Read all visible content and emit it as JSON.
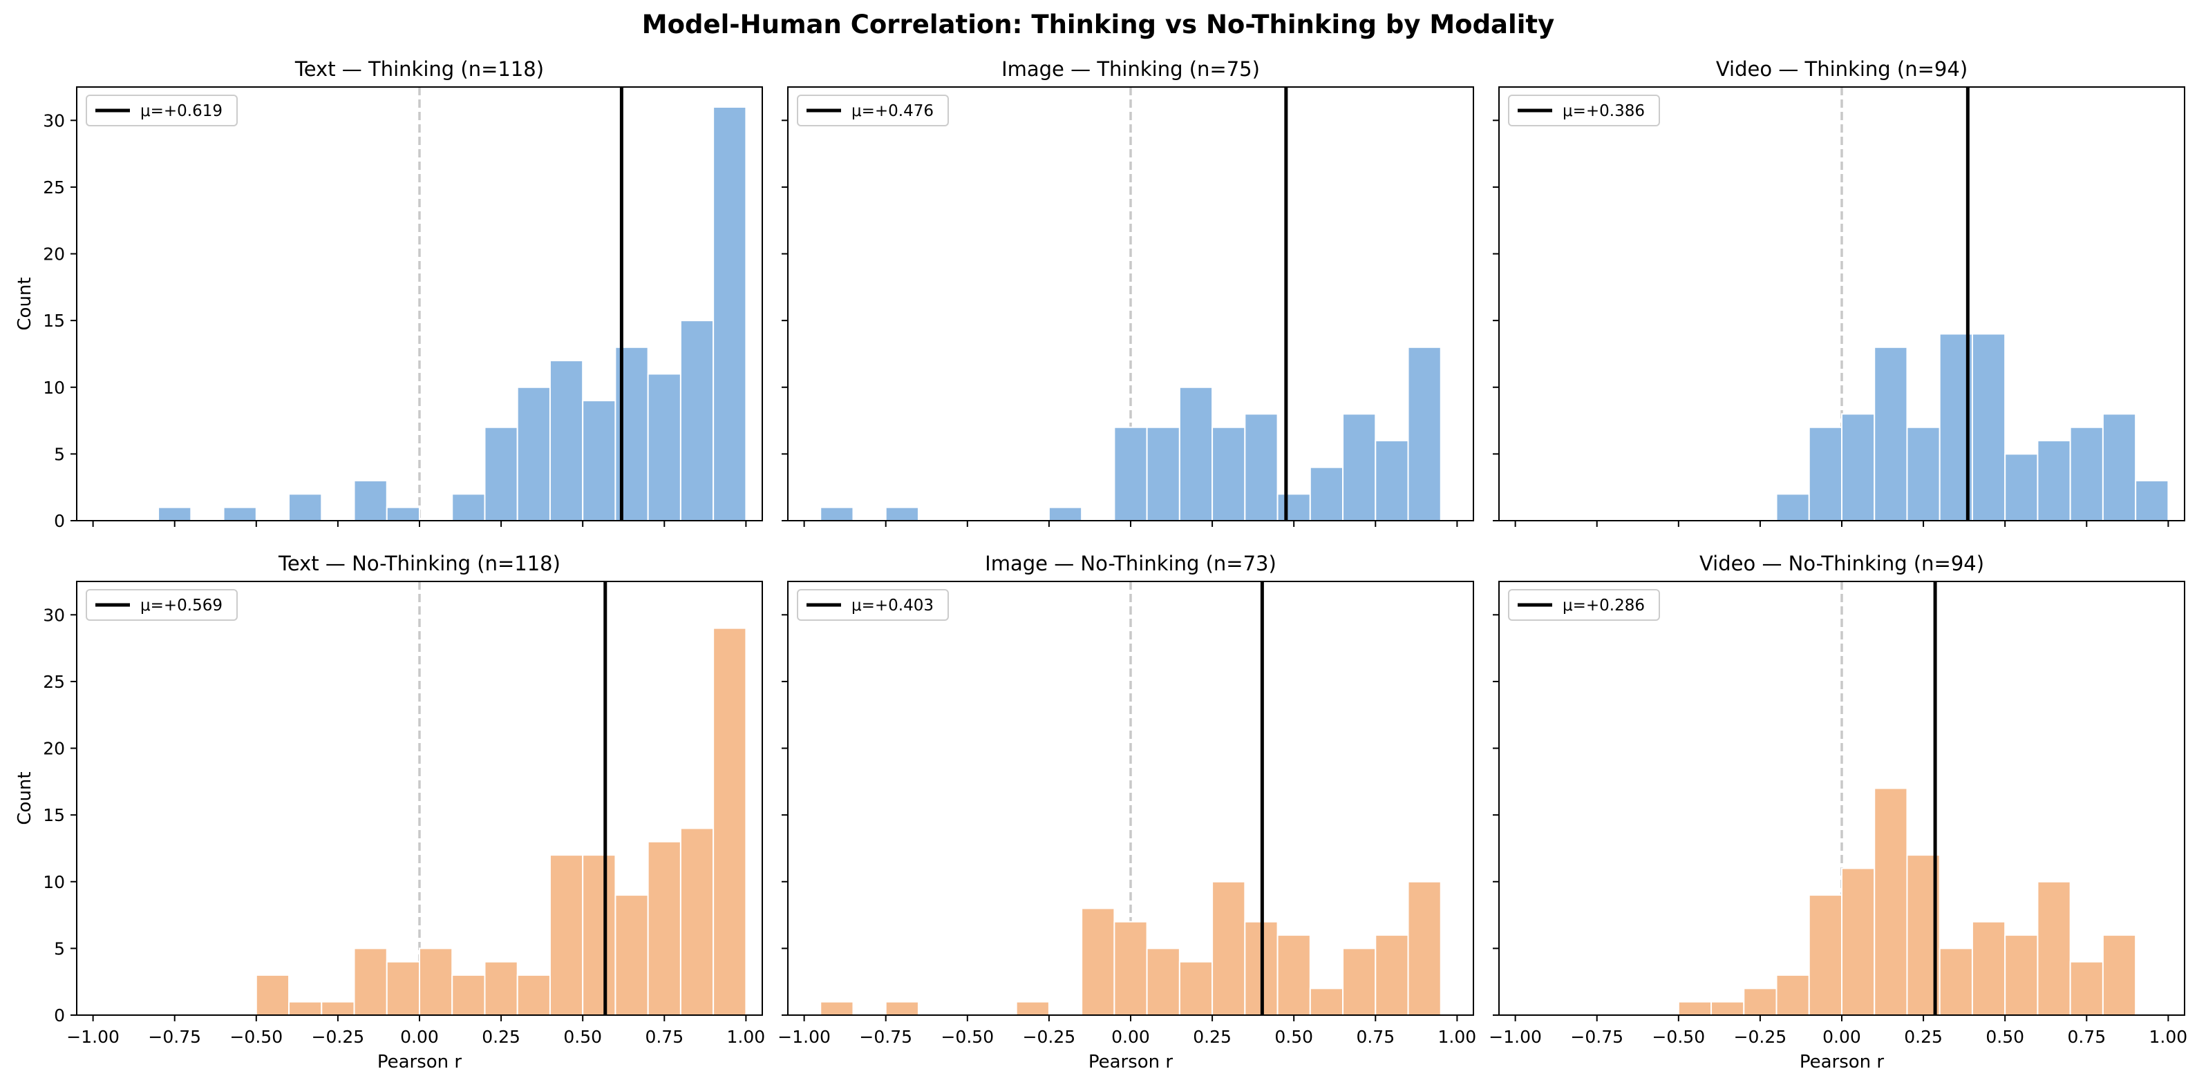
{
  "figure": {
    "suptitle": "Model-Human Correlation: Thinking vs No-Thinking by Modality"
  },
  "colors": {
    "thinking": "#8eb8e2",
    "no_thinking": "#f5bc8f",
    "mean_line": "#000000",
    "zero_line": "#c8c8c8"
  },
  "chart_data": [
    {
      "type": "bar",
      "title": "Text — Thinking (n=118)",
      "xlabel": "",
      "ylabel": "Count",
      "legend": {
        "label": "μ=+0.619",
        "placement": "top-left"
      },
      "mean": 0.619,
      "xlim": [
        -1.05,
        1.05
      ],
      "ylim": [
        0,
        32.5
      ],
      "bin_start": -0.9,
      "bin_width": 0.1,
      "values": [
        0,
        1,
        0,
        1,
        0,
        2,
        0,
        3,
        1,
        0,
        2,
        7,
        10,
        12,
        9,
        13,
        11,
        15,
        31
      ]
    },
    {
      "type": "bar",
      "title": "Image — Thinking (n=75)",
      "xlabel": "",
      "ylabel": "",
      "legend": {
        "label": "μ=+0.476",
        "placement": "top-left"
      },
      "mean": 0.476,
      "xlim": [
        -1.05,
        1.05
      ],
      "ylim": [
        0,
        32.5
      ],
      "bin_start": -0.95,
      "bin_width": 0.1,
      "values": [
        1,
        0,
        1,
        0,
        0,
        0,
        0,
        1,
        0,
        7,
        7,
        10,
        7,
        8,
        2,
        4,
        8,
        6,
        13
      ]
    },
    {
      "type": "bar",
      "title": "Video — Thinking (n=94)",
      "xlabel": "",
      "ylabel": "",
      "legend": {
        "label": "μ=+0.386",
        "placement": "top-left"
      },
      "mean": 0.386,
      "xlim": [
        -1.05,
        1.05
      ],
      "ylim": [
        0,
        32.5
      ],
      "bin_start": -0.2,
      "bin_width": 0.1,
      "values": [
        2,
        7,
        8,
        13,
        7,
        14,
        14,
        5,
        6,
        7,
        8,
        3
      ]
    },
    {
      "type": "bar",
      "title": "Text — No-Thinking (n=118)",
      "xlabel": "Pearson r",
      "ylabel": "Count",
      "legend": {
        "label": "μ=+0.569",
        "placement": "top-left"
      },
      "mean": 0.569,
      "xlim": [
        -1.05,
        1.05
      ],
      "ylim": [
        0,
        32.5
      ],
      "bin_start": -0.5,
      "bin_width": 0.1,
      "values": [
        3,
        1,
        1,
        5,
        4,
        5,
        3,
        4,
        3,
        12,
        12,
        9,
        13,
        14,
        29
      ]
    },
    {
      "type": "bar",
      "title": "Image — No-Thinking (n=73)",
      "xlabel": "Pearson r",
      "ylabel": "",
      "legend": {
        "label": "μ=+0.403",
        "placement": "top-left"
      },
      "mean": 0.403,
      "xlim": [
        -1.05,
        1.05
      ],
      "ylim": [
        0,
        32.5
      ],
      "bin_start": -0.95,
      "bin_width": 0.1,
      "values": [
        1,
        0,
        1,
        0,
        0,
        0,
        1,
        0,
        8,
        7,
        5,
        4,
        10,
        7,
        6,
        2,
        5,
        6,
        10
      ]
    },
    {
      "type": "bar",
      "title": "Video — No-Thinking (n=94)",
      "xlabel": "Pearson r",
      "ylabel": "",
      "legend": {
        "label": "μ=+0.286",
        "placement": "top-left"
      },
      "mean": 0.286,
      "xlim": [
        -1.05,
        1.05
      ],
      "ylim": [
        0,
        32.5
      ],
      "bin_start": -0.5,
      "bin_width": 0.1,
      "values": [
        1,
        1,
        2,
        3,
        9,
        11,
        17,
        12,
        5,
        7,
        6,
        10,
        4,
        6
      ]
    }
  ],
  "axes": {
    "xticks": [
      "−1.00",
      "−0.75",
      "−0.50",
      "−0.25",
      "0.00",
      "0.25",
      "0.50",
      "0.75",
      "1.00"
    ],
    "xtick_values": [
      -1,
      -0.75,
      -0.5,
      -0.25,
      0,
      0.25,
      0.5,
      0.75,
      1
    ],
    "yticks": [
      "0",
      "5",
      "10",
      "15",
      "20",
      "25",
      "30"
    ],
    "ytick_values": [
      0,
      5,
      10,
      15,
      20,
      25,
      30
    ]
  }
}
